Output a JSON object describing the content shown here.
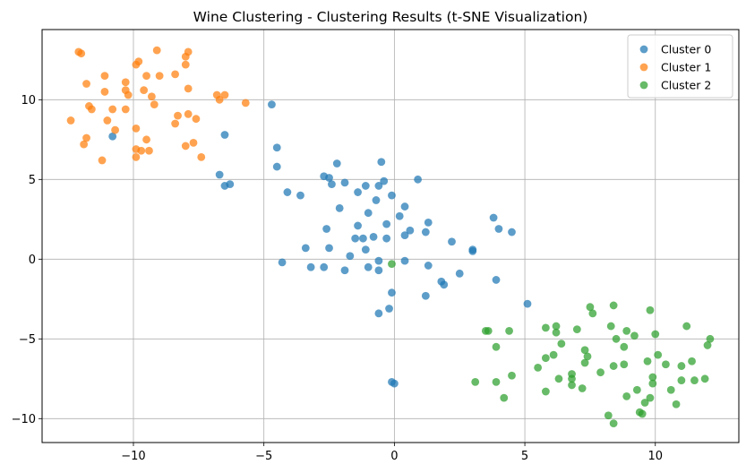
{
  "chart_data": {
    "type": "scatter",
    "title": "Wine Clustering - Clustering Results (t-SNE Visualization)",
    "xlabel": "",
    "ylabel": "",
    "xlim": [
      -13.5,
      13.2
    ],
    "ylim": [
      -11.5,
      14.4
    ],
    "xticks": [
      -10,
      -5,
      0,
      5,
      10
    ],
    "yticks": [
      -10,
      -5,
      0,
      5,
      10
    ],
    "xtick_labels": [
      "−10",
      "−5",
      "0",
      "5",
      "10"
    ],
    "ytick_labels": [
      "−10",
      "−5",
      "0",
      "5",
      "10"
    ],
    "grid": true,
    "legend_position": "top-right",
    "series": [
      {
        "name": "Cluster 0",
        "color": "#1f77b4",
        "points": [
          [
            -10.8,
            7.7
          ],
          [
            -4.7,
            9.7
          ],
          [
            -4.5,
            7.0
          ],
          [
            -4.5,
            5.8
          ],
          [
            -6.5,
            7.8
          ],
          [
            -6.7,
            5.3
          ],
          [
            -6.5,
            4.6
          ],
          [
            -6.3,
            4.7
          ],
          [
            -4.1,
            4.2
          ],
          [
            -3.6,
            4.0
          ],
          [
            -2.7,
            5.2
          ],
          [
            -2.5,
            5.1
          ],
          [
            -2.2,
            6.0
          ],
          [
            -2.4,
            4.7
          ],
          [
            -1.9,
            4.8
          ],
          [
            -1.4,
            4.2
          ],
          [
            -1.1,
            4.6
          ],
          [
            -0.6,
            4.6
          ],
          [
            -0.5,
            6.1
          ],
          [
            -0.4,
            4.9
          ],
          [
            -0.1,
            4.0
          ],
          [
            0.9,
            5.0
          ],
          [
            -0.7,
            3.7
          ],
          [
            -2.1,
            3.2
          ],
          [
            0.4,
            3.3
          ],
          [
            0.2,
            2.7
          ],
          [
            -1.0,
            2.9
          ],
          [
            -1.4,
            2.1
          ],
          [
            -0.3,
            2.2
          ],
          [
            -0.8,
            1.4
          ],
          [
            -1.2,
            1.3
          ],
          [
            -1.5,
            1.3
          ],
          [
            -0.3,
            1.3
          ],
          [
            -1.1,
            0.6
          ],
          [
            0.4,
            1.5
          ],
          [
            0.6,
            1.8
          ],
          [
            1.3,
            2.3
          ],
          [
            1.2,
            1.7
          ],
          [
            2.2,
            1.1
          ],
          [
            -2.6,
            1.9
          ],
          [
            -3.4,
            0.7
          ],
          [
            -2.5,
            0.7
          ],
          [
            -1.7,
            0.2
          ],
          [
            -2.7,
            -0.5
          ],
          [
            -3.2,
            -0.5
          ],
          [
            -1.9,
            -0.7
          ],
          [
            -1.0,
            -0.5
          ],
          [
            -0.6,
            -0.1
          ],
          [
            -0.6,
            -0.7
          ],
          [
            0.4,
            -0.1
          ],
          [
            1.3,
            -0.4
          ],
          [
            1.2,
            -2.3
          ],
          [
            -4.3,
            -0.2
          ],
          [
            1.8,
            -1.4
          ],
          [
            1.9,
            -1.6
          ],
          [
            2.5,
            -0.9
          ],
          [
            3.0,
            0.5
          ],
          [
            3.0,
            0.6
          ],
          [
            3.8,
            2.6
          ],
          [
            4.0,
            1.9
          ],
          [
            4.5,
            1.7
          ],
          [
            3.9,
            -1.3
          ],
          [
            5.1,
            -2.8
          ],
          [
            -0.1,
            -2.1
          ],
          [
            -0.2,
            -3.1
          ],
          [
            -0.6,
            -3.4
          ],
          [
            -0.1,
            -7.7
          ],
          [
            0.0,
            -7.8
          ]
        ]
      },
      {
        "name": "Cluster 1",
        "color": "#ff7f0e",
        "points": [
          [
            -12.1,
            13.0
          ],
          [
            -12.0,
            12.9
          ],
          [
            -9.1,
            13.1
          ],
          [
            -7.9,
            13.0
          ],
          [
            -8.0,
            12.7
          ],
          [
            -9.9,
            12.2
          ],
          [
            -9.8,
            12.4
          ],
          [
            -8.0,
            12.2
          ],
          [
            -11.1,
            11.5
          ],
          [
            -9.5,
            11.5
          ],
          [
            -9.0,
            11.5
          ],
          [
            -8.4,
            11.6
          ],
          [
            -11.8,
            11.0
          ],
          [
            -10.3,
            11.1
          ],
          [
            -7.9,
            10.7
          ],
          [
            -10.3,
            10.6
          ],
          [
            -11.1,
            10.5
          ],
          [
            -9.6,
            10.6
          ],
          [
            -10.2,
            10.3
          ],
          [
            -6.8,
            10.3
          ],
          [
            -6.5,
            10.3
          ],
          [
            -9.3,
            10.2
          ],
          [
            -6.7,
            10.0
          ],
          [
            -5.7,
            9.8
          ],
          [
            -11.7,
            9.6
          ],
          [
            -11.6,
            9.4
          ],
          [
            -10.8,
            9.4
          ],
          [
            -10.3,
            9.4
          ],
          [
            -9.2,
            9.7
          ],
          [
            -7.9,
            9.1
          ],
          [
            -8.3,
            9.0
          ],
          [
            -7.6,
            8.8
          ],
          [
            -12.4,
            8.7
          ],
          [
            -11.0,
            8.7
          ],
          [
            -8.4,
            8.5
          ],
          [
            -10.7,
            8.1
          ],
          [
            -9.9,
            8.2
          ],
          [
            -11.8,
            7.6
          ],
          [
            -9.5,
            7.5
          ],
          [
            -7.7,
            7.3
          ],
          [
            -11.9,
            7.2
          ],
          [
            -8.0,
            7.1
          ],
          [
            -9.9,
            6.9
          ],
          [
            -9.7,
            6.8
          ],
          [
            -9.4,
            6.8
          ],
          [
            -7.4,
            6.4
          ],
          [
            -11.2,
            6.2
          ],
          [
            -9.9,
            6.4
          ]
        ]
      },
      {
        "name": "Cluster 2",
        "color": "#2ca02c",
        "points": [
          [
            -0.1,
            -0.3
          ],
          [
            7.5,
            -3.0
          ],
          [
            7.6,
            -3.4
          ],
          [
            8.4,
            -2.9
          ],
          [
            9.8,
            -3.2
          ],
          [
            5.8,
            -4.3
          ],
          [
            6.2,
            -4.2
          ],
          [
            7.0,
            -4.4
          ],
          [
            8.3,
            -4.2
          ],
          [
            8.9,
            -4.5
          ],
          [
            9.2,
            -4.8
          ],
          [
            10.0,
            -4.7
          ],
          [
            11.2,
            -4.2
          ],
          [
            12.1,
            -5.0
          ],
          [
            12.0,
            -5.4
          ],
          [
            3.5,
            -4.5
          ],
          [
            3.6,
            -4.5
          ],
          [
            4.4,
            -4.5
          ],
          [
            6.2,
            -4.6
          ],
          [
            6.4,
            -5.3
          ],
          [
            8.5,
            -5.0
          ],
          [
            8.8,
            -5.5
          ],
          [
            3.9,
            -5.5
          ],
          [
            7.3,
            -5.7
          ],
          [
            5.8,
            -6.2
          ],
          [
            6.1,
            -6.0
          ],
          [
            7.4,
            -6.1
          ],
          [
            8.4,
            -6.7
          ],
          [
            9.7,
            -6.4
          ],
          [
            10.1,
            -6.0
          ],
          [
            10.4,
            -6.6
          ],
          [
            11.0,
            -6.7
          ],
          [
            11.4,
            -6.4
          ],
          [
            5.5,
            -6.8
          ],
          [
            6.8,
            -7.2
          ],
          [
            7.3,
            -6.5
          ],
          [
            8.8,
            -6.6
          ],
          [
            7.9,
            -7.1
          ],
          [
            6.3,
            -7.5
          ],
          [
            6.8,
            -7.5
          ],
          [
            7.2,
            -8.1
          ],
          [
            9.9,
            -7.4
          ],
          [
            10.6,
            -8.2
          ],
          [
            11.0,
            -7.6
          ],
          [
            11.5,
            -7.6
          ],
          [
            11.9,
            -7.5
          ],
          [
            3.1,
            -7.7
          ],
          [
            3.9,
            -7.7
          ],
          [
            4.5,
            -7.3
          ],
          [
            5.8,
            -8.3
          ],
          [
            6.8,
            -7.9
          ],
          [
            8.9,
            -8.6
          ],
          [
            9.3,
            -8.2
          ],
          [
            9.8,
            -8.7
          ],
          [
            9.9,
            -7.8
          ],
          [
            4.2,
            -8.7
          ],
          [
            9.6,
            -9.0
          ],
          [
            10.8,
            -9.1
          ],
          [
            9.4,
            -9.6
          ],
          [
            9.5,
            -9.7
          ],
          [
            8.2,
            -9.8
          ],
          [
            8.4,
            -10.3
          ]
        ]
      }
    ]
  }
}
